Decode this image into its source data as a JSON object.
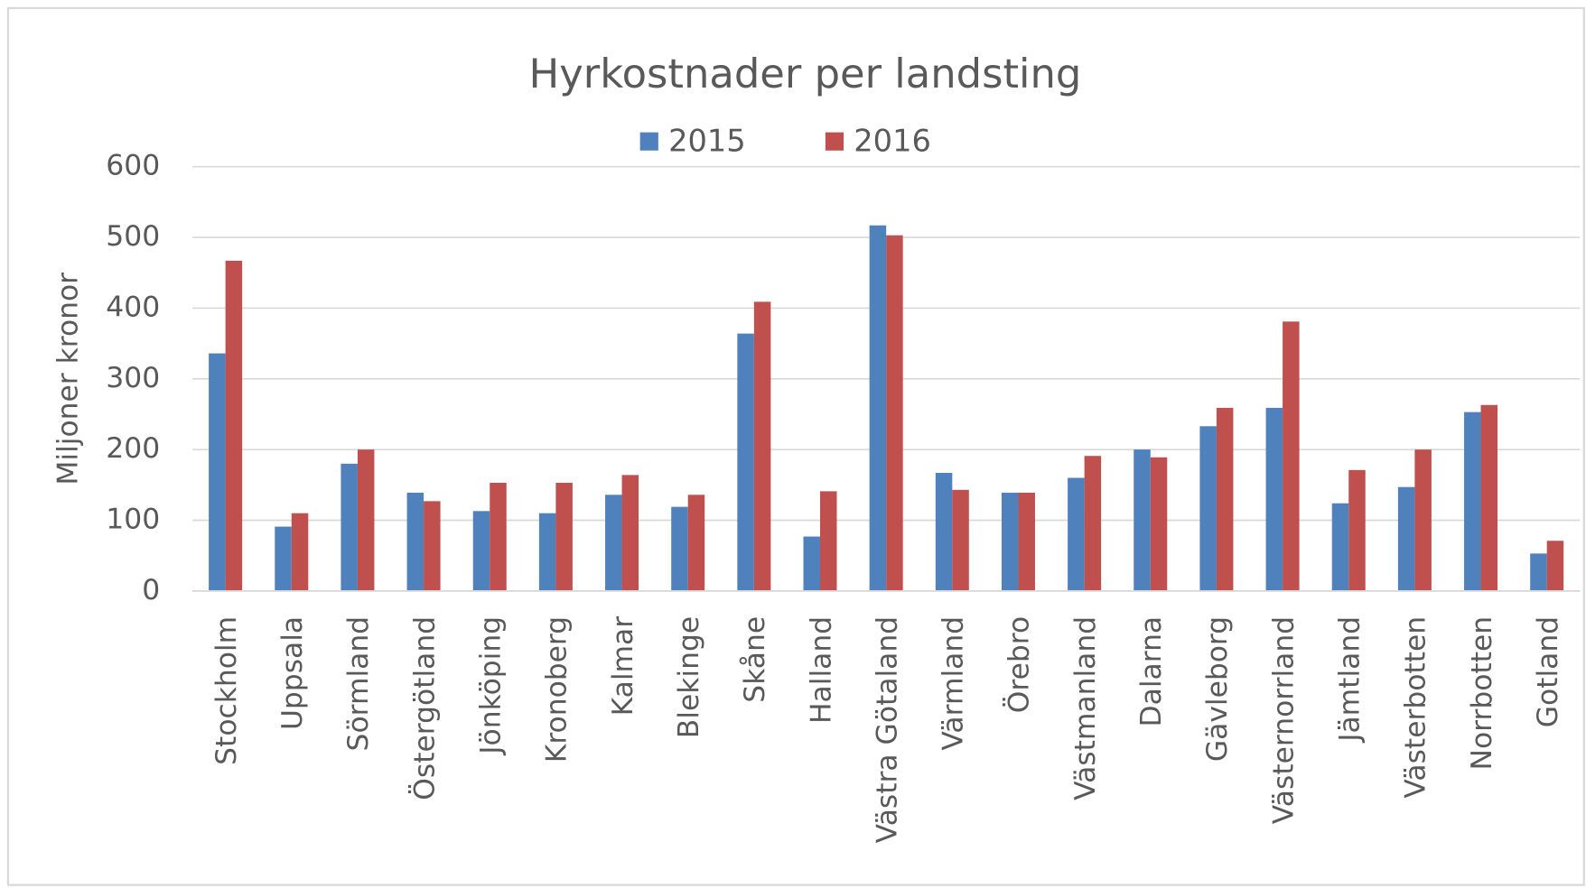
{
  "chart_data": {
    "type": "bar",
    "title": "Hyrkostnader per landsting",
    "y_label": "Miljoner kronor",
    "categories": [
      "Stockholm",
      "Uppsala",
      "Sörmland",
      "Östergötland",
      "Jönköping",
      "Kronoberg",
      "Kalmar",
      "Blekinge",
      "Skåne",
      "Halland",
      "Västra Götaland",
      "Värmland",
      "Örebro",
      "Västmanland",
      "Dalarna",
      "Gävleborg",
      "Västernorrland",
      "Jämtland",
      "Västerbotten",
      "Norrbotten",
      "Gotland"
    ],
    "series": [
      {
        "name": "2015",
        "color": "#4f81bd",
        "values": [
          336,
          91,
          180,
          139,
          113,
          110,
          136,
          119,
          364,
          77,
          517,
          167,
          139,
          160,
          200,
          233,
          259,
          124,
          147,
          253,
          53
        ]
      },
      {
        "name": "2016",
        "color": "#c0504d",
        "values": [
          467,
          110,
          200,
          127,
          153,
          153,
          164,
          136,
          409,
          141,
          503,
          143,
          139,
          191,
          189,
          259,
          381,
          171,
          200,
          263,
          71
        ]
      }
    ],
    "ylim": [
      0,
      600
    ],
    "yticks": [
      0,
      100,
      200,
      300,
      400,
      500,
      600
    ],
    "grid": true,
    "legend": "top"
  }
}
